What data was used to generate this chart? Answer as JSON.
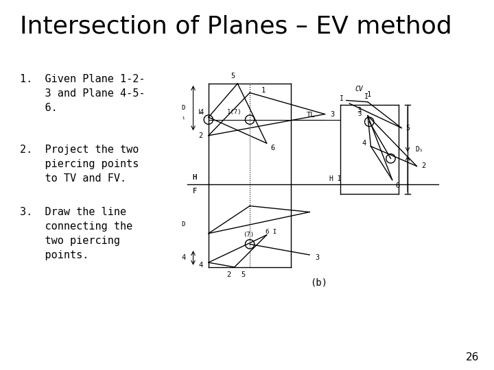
{
  "title": "Intersection of Planes – EV method",
  "title_fontsize": 26,
  "bullet1": "1.  Given Plane 1-2-\n    3 and Plane 4-5-\n    6.",
  "bullet2": "2.  Project the two\n    piercing points\n    to TV and FV.",
  "bullet3": "3.  Draw the line\n    connecting the\n    two piercing\n    points.",
  "page_number": "26",
  "text_fontsize": 11,
  "background_color": "#ffffff"
}
